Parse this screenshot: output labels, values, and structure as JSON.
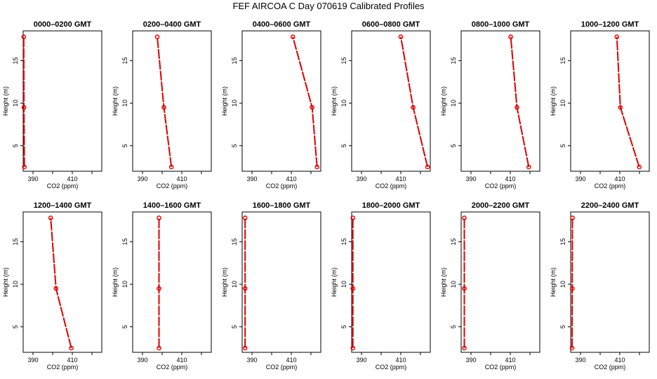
{
  "figure": {
    "title": "FEF AIRCOA C  Day 070619  Calibrated Profiles"
  },
  "chart_data": [
    {
      "type": "line",
      "title": "0000–0200 GMT",
      "xlabel": "CO2 (ppm)",
      "ylabel": "Height (m)",
      "xlim": [
        385,
        425
      ],
      "ylim": [
        2,
        18.5
      ],
      "xticks": [
        390,
        400,
        410,
        420
      ],
      "xtick_labels": [
        "390",
        "",
        "410",
        ""
      ],
      "yticks": [
        5,
        10,
        15
      ],
      "ytick_labels": [
        "5",
        "10",
        "15"
      ],
      "series": [
        {
          "x": [
            385.6,
            385.4,
            385.3
          ],
          "y": [
            2.5,
            9.5,
            17.8
          ]
        }
      ],
      "color": "#dd0000"
    },
    {
      "type": "line",
      "title": "0200–0400 GMT",
      "xlabel": "CO2 (ppm)",
      "ylabel": "Height (m)",
      "xlim": [
        385,
        425
      ],
      "ylim": [
        2,
        18.5
      ],
      "xticks": [
        390,
        400,
        410,
        420
      ],
      "xtick_labels": [
        "390",
        "",
        "410",
        ""
      ],
      "yticks": [
        5,
        10,
        15
      ],
      "ytick_labels": [
        "5",
        "10",
        "15"
      ],
      "series": [
        {
          "x": [
            404.7,
            400.9,
            397.5
          ],
          "y": [
            2.5,
            9.5,
            17.8
          ]
        }
      ],
      "color": "#dd0000"
    },
    {
      "type": "line",
      "title": "0400–0600 GMT",
      "xlabel": "CO2 (ppm)",
      "ylabel": "Height (m)",
      "xlim": [
        385,
        425
      ],
      "ylim": [
        2,
        18.5
      ],
      "xticks": [
        390,
        400,
        410,
        420
      ],
      "xtick_labels": [
        "390",
        "",
        "410",
        ""
      ],
      "yticks": [
        5,
        10,
        15
      ],
      "ytick_labels": [
        "5",
        "10",
        "15"
      ],
      "series": [
        {
          "x": [
            423.1,
            420.6,
            410.8
          ],
          "y": [
            2.5,
            9.5,
            17.8
          ]
        }
      ],
      "color": "#dd0000"
    },
    {
      "type": "line",
      "title": "0600–0800 GMT",
      "xlabel": "CO2 (ppm)",
      "ylabel": "Height (m)",
      "xlim": [
        385,
        425
      ],
      "ylim": [
        2,
        18.5
      ],
      "xticks": [
        390,
        400,
        410,
        420
      ],
      "xtick_labels": [
        "390",
        "",
        "410",
        ""
      ],
      "yticks": [
        5,
        10,
        15
      ],
      "ytick_labels": [
        "5",
        "10",
        "15"
      ],
      "series": [
        {
          "x": [
            423.6,
            416.3,
            410.0
          ],
          "y": [
            2.5,
            9.5,
            17.8
          ]
        }
      ],
      "color": "#dd0000"
    },
    {
      "type": "line",
      "title": "0800–1000 GMT",
      "xlabel": "CO2 (ppm)",
      "ylabel": "Height (m)",
      "xlim": [
        385,
        425
      ],
      "ylim": [
        2,
        18.5
      ],
      "xticks": [
        390,
        400,
        410,
        420
      ],
      "xtick_labels": [
        "390",
        "",
        "410",
        ""
      ],
      "yticks": [
        5,
        10,
        15
      ],
      "ytick_labels": [
        "5",
        "10",
        "15"
      ],
      "series": [
        {
          "x": [
            419.4,
            413.4,
            410.2
          ],
          "y": [
            2.5,
            9.5,
            17.8
          ]
        }
      ],
      "color": "#dd0000"
    },
    {
      "type": "line",
      "title": "1000–1200 GMT",
      "xlabel": "CO2 (ppm)",
      "ylabel": "Height (m)",
      "xlim": [
        385,
        425
      ],
      "ylim": [
        2,
        18.5
      ],
      "xticks": [
        390,
        400,
        410,
        420
      ],
      "xtick_labels": [
        "390",
        "",
        "410",
        ""
      ],
      "yticks": [
        5,
        10,
        15
      ],
      "ytick_labels": [
        "5",
        "10",
        "15"
      ],
      "series": [
        {
          "x": [
            419.9,
            410.3,
            408.5
          ],
          "y": [
            2.5,
            9.5,
            17.8
          ]
        }
      ],
      "color": "#dd0000"
    },
    {
      "type": "line",
      "title": "1200–1400 GMT",
      "xlabel": "CO2 (ppm)",
      "ylabel": "Height (m)",
      "xlim": [
        385,
        425
      ],
      "ylim": [
        2,
        18.5
      ],
      "xticks": [
        390,
        400,
        410,
        420
      ],
      "xtick_labels": [
        "390",
        "",
        "410",
        ""
      ],
      "yticks": [
        5,
        10,
        15
      ],
      "ytick_labels": [
        "5",
        "10",
        "15"
      ],
      "series": [
        {
          "x": [
            409.5,
            401.7,
            399.0
          ],
          "y": [
            2.5,
            9.5,
            17.8
          ]
        }
      ],
      "color": "#dd0000"
    },
    {
      "type": "line",
      "title": "1400–1600 GMT",
      "xlabel": "CO2 (ppm)",
      "ylabel": "Height (m)",
      "xlim": [
        385,
        425
      ],
      "ylim": [
        2,
        18.5
      ],
      "xticks": [
        390,
        400,
        410,
        420
      ],
      "xtick_labels": [
        "390",
        "",
        "410",
        ""
      ],
      "yticks": [
        5,
        10,
        15
      ],
      "ytick_labels": [
        "5",
        "10",
        "15"
      ],
      "series": [
        {
          "x": [
            398.4,
            398.4,
            398.4
          ],
          "y": [
            2.5,
            9.5,
            17.8
          ]
        }
      ],
      "color": "#dd0000"
    },
    {
      "type": "line",
      "title": "1600–1800 GMT",
      "xlabel": "CO2 (ppm)",
      "ylabel": "Height (m)",
      "xlim": [
        385,
        425
      ],
      "ylim": [
        2,
        18.5
      ],
      "xticks": [
        390,
        400,
        410,
        420
      ],
      "xtick_labels": [
        "390",
        "",
        "410",
        ""
      ],
      "yticks": [
        5,
        10,
        15
      ],
      "ytick_labels": [
        "5",
        "10",
        "15"
      ],
      "series": [
        {
          "x": [
            386.5,
            386.5,
            386.5
          ],
          "y": [
            2.5,
            9.5,
            17.8
          ]
        }
      ],
      "color": "#dd0000"
    },
    {
      "type": "line",
      "title": "1800–2000 GMT",
      "xlabel": "CO2 (ppm)",
      "ylabel": "Height (m)",
      "xlim": [
        385,
        425
      ],
      "ylim": [
        2,
        18.5
      ],
      "xticks": [
        390,
        400,
        410,
        420
      ],
      "xtick_labels": [
        "390",
        "",
        "410",
        ""
      ],
      "yticks": [
        5,
        10,
        15
      ],
      "ytick_labels": [
        "5",
        "10",
        "15"
      ],
      "series": [
        {
          "x": [
            385.6,
            385.6,
            385.6
          ],
          "y": [
            2.5,
            9.5,
            17.8
          ]
        }
      ],
      "color": "#dd0000"
    },
    {
      "type": "line",
      "title": "2000–2200 GMT",
      "xlabel": "CO2 (ppm)",
      "ylabel": "Height (m)",
      "xlim": [
        385,
        425
      ],
      "ylim": [
        2,
        18.5
      ],
      "xticks": [
        390,
        400,
        410,
        420
      ],
      "xtick_labels": [
        "390",
        "",
        "410",
        ""
      ],
      "yticks": [
        5,
        10,
        15
      ],
      "ytick_labels": [
        "5",
        "10",
        "15"
      ],
      "series": [
        {
          "x": [
            386.6,
            386.6,
            386.6
          ],
          "y": [
            2.5,
            9.5,
            17.8
          ]
        }
      ],
      "color": "#dd0000"
    },
    {
      "type": "line",
      "title": "2200–2400 GMT",
      "xlabel": "CO2 (ppm)",
      "ylabel": "Height (m)",
      "xlim": [
        385,
        425
      ],
      "ylim": [
        2,
        18.5
      ],
      "xticks": [
        390,
        400,
        410,
        420
      ],
      "xtick_labels": [
        "390",
        "",
        "410",
        ""
      ],
      "yticks": [
        5,
        10,
        15
      ],
      "ytick_labels": [
        "5",
        "10",
        "15"
      ],
      "series": [
        {
          "x": [
            385.7,
            385.8,
            385.9
          ],
          "y": [
            2.5,
            9.5,
            17.8
          ]
        }
      ],
      "color": "#dd0000"
    }
  ]
}
